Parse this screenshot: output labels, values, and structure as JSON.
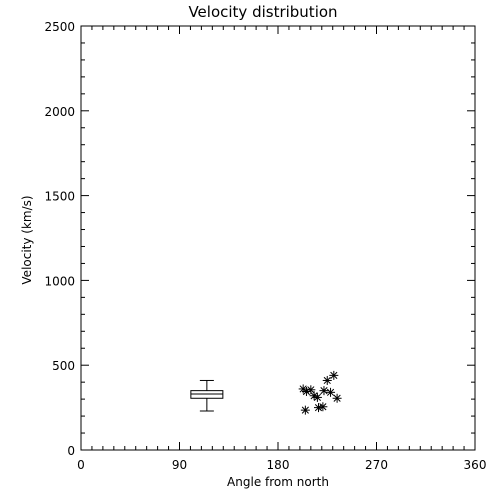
{
  "chart_data": {
    "type": "scatter",
    "title": "Velocity distribution",
    "xlabel": "Angle from north",
    "ylabel": "Velocity (km/s)",
    "xlim": [
      0,
      360
    ],
    "ylim": [
      0,
      2500
    ],
    "xticks": [
      0,
      90,
      180,
      270,
      360
    ],
    "yticks": [
      0,
      500,
      1000,
      1500,
      2000,
      2500
    ],
    "x_minor_step": 10,
    "y_minor_step": 100,
    "grid": false,
    "boxplot": {
      "x": 115,
      "min": 230,
      "q1": 305,
      "median": 330,
      "q3": 350,
      "max": 410
    },
    "points": [
      {
        "x": 203,
        "y": 360
      },
      {
        "x": 206,
        "y": 345
      },
      {
        "x": 210,
        "y": 355
      },
      {
        "x": 213,
        "y": 320
      },
      {
        "x": 216,
        "y": 310
      },
      {
        "x": 205,
        "y": 235
      },
      {
        "x": 217,
        "y": 250
      },
      {
        "x": 221,
        "y": 255
      },
      {
        "x": 222,
        "y": 350
      },
      {
        "x": 225,
        "y": 410
      },
      {
        "x": 228,
        "y": 340
      },
      {
        "x": 231,
        "y": 440
      },
      {
        "x": 234,
        "y": 305
      }
    ]
  }
}
